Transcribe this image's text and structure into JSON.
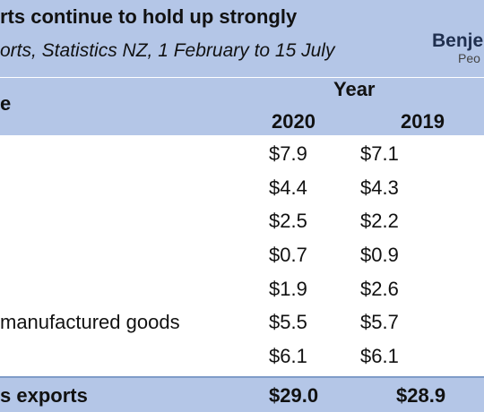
{
  "colors": {
    "header_bg": "#b4c6e7",
    "total_border": "#7f9cc8"
  },
  "chart_data": {
    "type": "table",
    "title": "rts continue to hold up strongly",
    "subtitle": "orts, Statistics NZ, 1 February to 15 July",
    "row_header": "e",
    "column_group": "Year",
    "columns": [
      "2020",
      "2019"
    ],
    "rows": [
      {
        "label": "",
        "values": [
          "$7.9",
          "$7.1"
        ]
      },
      {
        "label": "",
        "values": [
          "$4.4",
          "$4.3"
        ]
      },
      {
        "label": "",
        "values": [
          "$2.5",
          "$2.2"
        ]
      },
      {
        "label": "",
        "values": [
          "$0.7",
          "$0.9"
        ]
      },
      {
        "label": "",
        "values": [
          "$1.9",
          "$2.6"
        ]
      },
      {
        "label": "manufactured goods",
        "values": [
          "$5.5",
          "$5.7"
        ]
      },
      {
        "label": "",
        "values": [
          "$6.1",
          "$6.1"
        ]
      }
    ],
    "total": {
      "label": "s exports",
      "values": [
        "$29.0",
        "$28.9"
      ]
    }
  },
  "logo": {
    "main": "Benje",
    "sub": "Peo"
  }
}
